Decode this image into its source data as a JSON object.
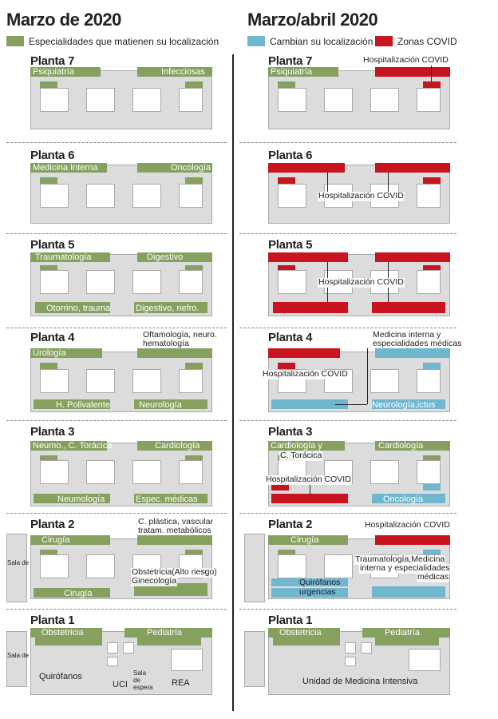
{
  "headers": {
    "left": "Marzo de 2020",
    "right": "Marzo/abril 2020"
  },
  "legend": [
    {
      "label": "Especialidades que matienen su localización",
      "color": "#86a060"
    },
    {
      "label": "Cambian su localización",
      "color": "#70b6cf"
    },
    {
      "label": "Zonas COVID",
      "color": "#c8141e"
    }
  ],
  "left": {
    "p7": {
      "title": "Planta 7",
      "a": "Psiquiatría",
      "b": "Infecciosas"
    },
    "p6": {
      "title": "Planta 6",
      "a": "Medicina Interna",
      "b": "Oncología"
    },
    "p5": {
      "title": "Planta 5",
      "a": "Traumatología",
      "b": "Digestivo",
      "c": "Otorrino, trauma",
      "d": "Digestivo, nefro."
    },
    "p4": {
      "title": "Planta 4",
      "a": "Urología",
      "b": "Oftamología, neuro.",
      "b2": "hematología",
      "c": "H. Polivalente",
      "d": "Neurología"
    },
    "p3": {
      "title": "Planta 3",
      "a": "Neumo., C. Torácica",
      "b": "Cardiología",
      "c": "Neumología",
      "d": "Espec. médicas"
    },
    "p2": {
      "title": "Planta 2",
      "side": "Sala de espera",
      "a": "Cirugía",
      "b": "C. plástica, vascular",
      "b2": "tratam. metabólicos",
      "c": "Cirugía",
      "d": "Obstetricia(Alto riesgo)",
      "d2": "Ginecología"
    },
    "p1": {
      "title": "Planta 1",
      "side": "Sala de espera",
      "a": "Obstetricia",
      "b": "Pediatría",
      "c": "Quirófanos",
      "d": "UCI",
      "e": "Sala de espera",
      "f": "REA"
    }
  },
  "right": {
    "p7": {
      "title": "Planta 7",
      "a": "Psiquiatría",
      "b": "Hospitalización COVID"
    },
    "p6": {
      "title": "Planta 6",
      "b": "Hospitalización COVID"
    },
    "p5": {
      "title": "Planta 5",
      "b": "Hospitalización COVID"
    },
    "p4": {
      "title": "Planta 4",
      "a": "Hospitalización COVID",
      "b": "Medicina interna y",
      "b2": "especialidades médicas",
      "c": "Neurología,ictus"
    },
    "p3": {
      "title": "Planta 3",
      "a": "Cardiología y",
      "a2": "C. Torácica",
      "b": "Cardiología",
      "c": "Hospitalización COVID",
      "d": "Oncología"
    },
    "p2": {
      "title": "Planta 2",
      "a": "Cirugía",
      "b": "Hospitalización COVID",
      "c": "Quirófanos",
      "c2": "urgencias",
      "d": "Traumatología,Medicina",
      "d2": "interna y especialidades",
      "d3": "médicas"
    },
    "p1": {
      "title": "Planta 1",
      "a": "Obstetricia",
      "b": "Pediatría",
      "c": "Unidad de Medicina Intensiva"
    }
  }
}
